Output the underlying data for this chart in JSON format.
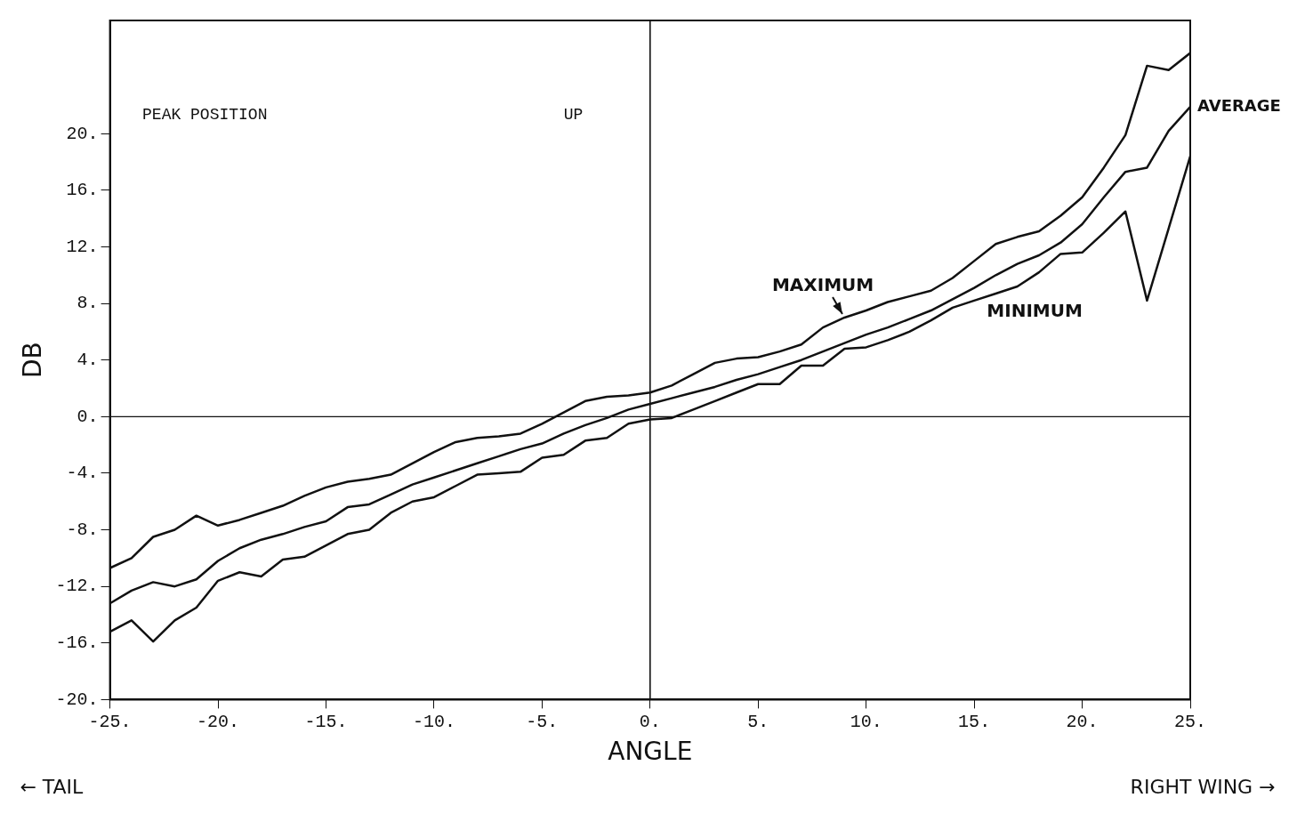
{
  "chart_data": {
    "type": "line",
    "xlabel": "ANGLE",
    "ylabel": "DB",
    "x": [
      -25,
      -24,
      -23,
      -22,
      -21,
      -20,
      -19,
      -18,
      -17,
      -16,
      -15,
      -14,
      -13,
      -12,
      -11,
      -10,
      -9,
      -8,
      -7,
      -6,
      -5,
      -4,
      -3,
      -2,
      -1,
      0,
      1,
      2,
      3,
      4,
      5,
      6,
      7,
      8,
      9,
      10,
      11,
      12,
      13,
      14,
      15,
      16,
      17,
      18,
      19,
      20,
      21,
      22,
      23,
      24,
      25
    ],
    "series": [
      {
        "name": "MAXIMUM",
        "color": "#111111",
        "values": [
          -10.7,
          -10.0,
          -8.5,
          -8.0,
          -7.0,
          -7.7,
          -7.3,
          -6.8,
          -6.3,
          -5.6,
          -5.0,
          -4.6,
          -4.4,
          -4.1,
          -3.3,
          -2.5,
          -1.8,
          -1.5,
          -1.4,
          -1.2,
          -0.5,
          0.3,
          1.1,
          1.4,
          1.5,
          1.7,
          2.2,
          3.0,
          3.8,
          4.1,
          4.2,
          4.6,
          5.1,
          6.3,
          7.0,
          7.5,
          8.1,
          8.5,
          8.9,
          9.8,
          11.0,
          12.2,
          12.7,
          13.1,
          14.2,
          15.5,
          17.6,
          19.9,
          24.8,
          24.5,
          25.7
        ]
      },
      {
        "name": "AVERAGE",
        "color": "#111111",
        "values": [
          -13.2,
          -12.3,
          -11.7,
          -12.0,
          -11.5,
          -10.2,
          -9.3,
          -8.7,
          -8.3,
          -7.8,
          -7.4,
          -6.4,
          -6.2,
          -5.5,
          -4.8,
          -4.3,
          -3.8,
          -3.3,
          -2.8,
          -2.3,
          -1.9,
          -1.2,
          -0.6,
          -0.1,
          0.5,
          0.9,
          1.3,
          1.7,
          2.1,
          2.6,
          3.0,
          3.5,
          4.0,
          4.6,
          5.2,
          5.8,
          6.3,
          6.9,
          7.5,
          8.3,
          9.1,
          10.0,
          10.8,
          11.4,
          12.3,
          13.6,
          15.5,
          17.3,
          17.6,
          20.2,
          21.9
        ]
      },
      {
        "name": "MINIMUM",
        "color": "#111111",
        "values": [
          -15.2,
          -14.4,
          -15.9,
          -14.4,
          -13.5,
          -11.6,
          -11.0,
          -11.3,
          -10.1,
          -9.9,
          -9.1,
          -8.3,
          -8.0,
          -6.8,
          -6.0,
          -5.7,
          -4.9,
          -4.1,
          -4.0,
          -3.9,
          -2.9,
          -2.7,
          -1.7,
          -1.5,
          -0.5,
          -0.2,
          -0.1,
          0.5,
          1.1,
          1.7,
          2.3,
          2.3,
          3.6,
          3.6,
          4.8,
          4.9,
          5.4,
          6.0,
          6.8,
          7.7,
          8.2,
          8.7,
          9.2,
          10.2,
          11.5,
          11.6,
          13.0,
          14.5,
          8.2,
          13.3,
          18.4
        ]
      }
    ],
    "xlim": [
      -25,
      25
    ],
    "xticks": [
      {
        "value": -25,
        "label": "-25."
      },
      {
        "value": -20,
        "label": "-20."
      },
      {
        "value": -15,
        "label": "-15."
      },
      {
        "value": -10,
        "label": "-10."
      },
      {
        "value": -5,
        "label": "-5."
      },
      {
        "value": 0,
        "label": "0."
      },
      {
        "value": 5,
        "label": "5."
      },
      {
        "value": 10,
        "label": "10."
      },
      {
        "value": 15,
        "label": "15."
      },
      {
        "value": 20,
        "label": "20."
      },
      {
        "value": 25,
        "label": "25."
      }
    ],
    "ylim": [
      -20,
      28
    ],
    "yticks": [
      {
        "value": -20,
        "label": "-20."
      },
      {
        "value": -16,
        "label": "-16."
      },
      {
        "value": -12,
        "label": "-12."
      },
      {
        "value": -8,
        "label": "-8."
      },
      {
        "value": -4,
        "label": "-4."
      },
      {
        "value": 0,
        "label": "0."
      },
      {
        "value": 4,
        "label": "4."
      },
      {
        "value": 8,
        "label": "8."
      },
      {
        "value": 12,
        "label": "12."
      },
      {
        "value": 16,
        "label": "16."
      },
      {
        "value": 20,
        "label": "20."
      }
    ],
    "ref_lines": [
      {
        "axis": "x",
        "value": 0,
        "color": "#111111"
      },
      {
        "axis": "y",
        "value": 0,
        "color": "#111111"
      }
    ],
    "annotations": [
      "PEAK POSITION",
      "UP",
      "← TAIL",
      "RIGHT WING →"
    ],
    "grid": false,
    "legend": false,
    "marker": "none",
    "line_style": "solid"
  }
}
